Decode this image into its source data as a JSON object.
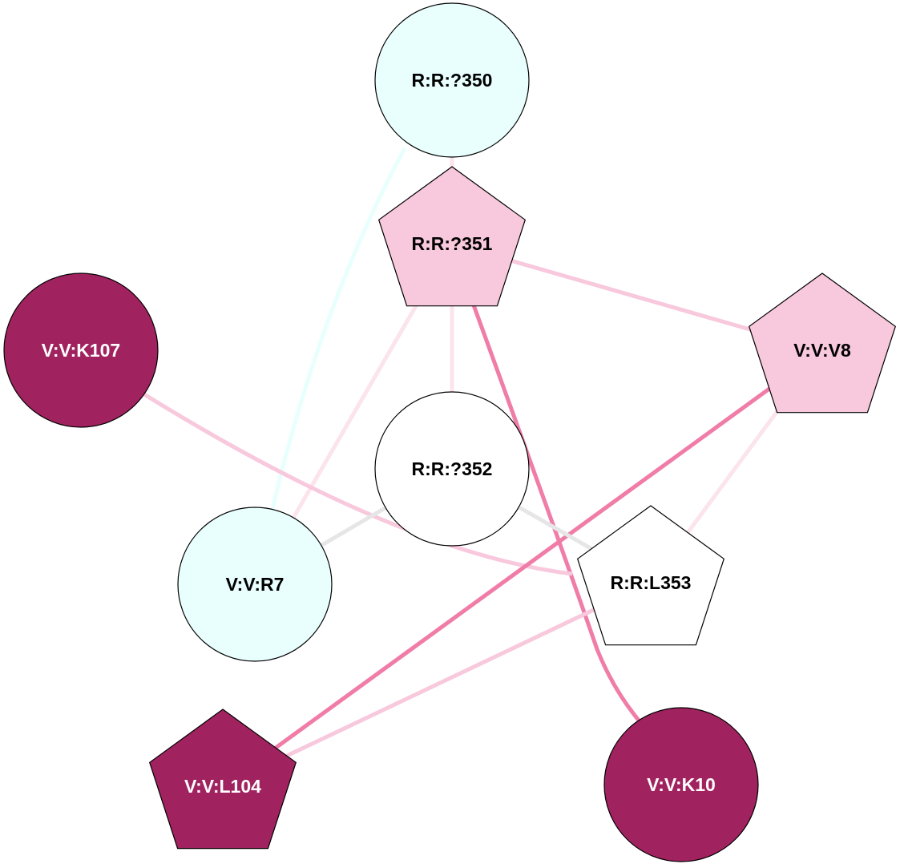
{
  "nodes": [
    {
      "id": "R:R:?350",
      "label": "R:R:?350",
      "shape": "circle",
      "fill": "#e8fffe",
      "text_color": "#000000"
    },
    {
      "id": "R:R:?351",
      "label": "R:R:?351",
      "shape": "pentagon",
      "fill": "#f8c8dc",
      "text_color": "#000000"
    },
    {
      "id": "V:V:K107",
      "label": "V:V:K107",
      "shape": "circle",
      "fill": "#a0225f",
      "text_color": "#ffffff"
    },
    {
      "id": "V:V:V8",
      "label": "V:V:V8",
      "shape": "pentagon",
      "fill": "#f8c8dc",
      "text_color": "#000000"
    },
    {
      "id": "R:R:?352",
      "label": "R:R:?352",
      "shape": "circle",
      "fill": "#ffffff",
      "text_color": "#000000"
    },
    {
      "id": "V:V:R7",
      "label": "V:V:R7",
      "shape": "circle",
      "fill": "#e8fffe",
      "text_color": "#000000"
    },
    {
      "id": "R:R:L353",
      "label": "R:R:L353",
      "shape": "pentagon",
      "fill": "#ffffff",
      "text_color": "#000000"
    },
    {
      "id": "V:V:L104",
      "label": "V:V:L104",
      "shape": "pentagon",
      "fill": "#a0225f",
      "text_color": "#ffffff"
    },
    {
      "id": "V:V:K10",
      "label": "V:V:K10",
      "shape": "circle",
      "fill": "#a0225f",
      "text_color": "#ffffff"
    }
  ],
  "edges": [
    {
      "source": "R:R:?350",
      "target": "V:V:R7",
      "color": "#e8fffe"
    },
    {
      "source": "R:R:?350",
      "target": "R:R:?351",
      "color": "#fbe4ec"
    },
    {
      "source": "R:R:?351",
      "target": "V:V:V8",
      "color": "#f8c8dc"
    },
    {
      "source": "R:R:?351",
      "target": "V:V:R7",
      "color": "#fbe4ec"
    },
    {
      "source": "R:R:?351",
      "target": "R:R:?352",
      "color": "#fbe4ec"
    },
    {
      "source": "R:R:?351",
      "target": "V:V:K10",
      "color": "#f07ca8"
    },
    {
      "source": "V:V:K107",
      "target": "R:R:L353",
      "color": "#f8c8dc"
    },
    {
      "source": "V:V:V8",
      "target": "V:V:L104",
      "color": "#f07ca8"
    },
    {
      "source": "V:V:V8",
      "target": "R:R:L353",
      "color": "#fbe4ec"
    },
    {
      "source": "R:R:?352",
      "target": "V:V:R7",
      "color": "#e6e6e6"
    },
    {
      "source": "R:R:?352",
      "target": "R:R:L353",
      "color": "#e6e6e6"
    },
    {
      "source": "R:R:L353",
      "target": "V:V:L104",
      "color": "#f8c8dc"
    }
  ]
}
